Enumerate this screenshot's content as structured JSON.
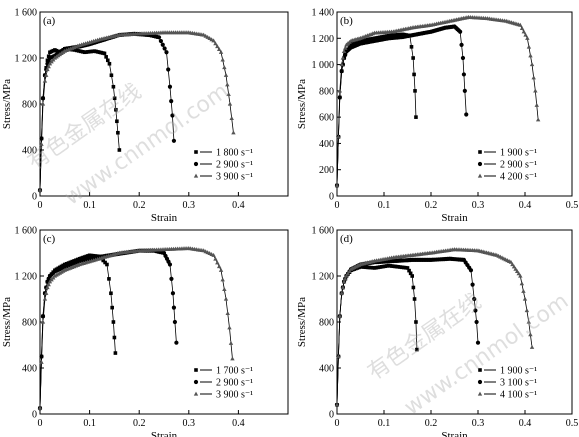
{
  "chart_data": [
    {
      "type": "line",
      "panel_label": "(a)",
      "xlabel": "Strain",
      "ylabel": "Stress/MPa",
      "xlim": [
        0,
        0.5
      ],
      "ylim": [
        0,
        1600
      ],
      "x_ticks": [
        "0",
        "0.1",
        "0.2",
        "0.3",
        "0.4"
      ],
      "y_ticks": [
        "0",
        "400",
        "800",
        "1 200",
        "1 600"
      ],
      "grid": false,
      "legend_position": "bottom-right",
      "series": [
        {
          "name": "1 800 s⁻¹",
          "marker": "square",
          "x": [
            0,
            0.003,
            0.006,
            0.01,
            0.015,
            0.02,
            0.03,
            0.04,
            0.05,
            0.07,
            0.09,
            0.11,
            0.13,
            0.14,
            0.148,
            0.153,
            0.157,
            0.16
          ],
          "y": [
            50,
            500,
            850,
            1050,
            1180,
            1250,
            1270,
            1250,
            1280,
            1270,
            1250,
            1260,
            1240,
            1150,
            950,
            750,
            550,
            400
          ]
        },
        {
          "name": "2 900 s⁻¹",
          "marker": "circle",
          "x": [
            0,
            0.003,
            0.006,
            0.01,
            0.015,
            0.02,
            0.03,
            0.05,
            0.08,
            0.1,
            0.13,
            0.16,
            0.19,
            0.22,
            0.24,
            0.255,
            0.262,
            0.267,
            0.27
          ],
          "y": [
            50,
            500,
            850,
            1050,
            1150,
            1200,
            1220,
            1280,
            1300,
            1320,
            1360,
            1400,
            1410,
            1400,
            1380,
            1250,
            950,
            700,
            480
          ]
        },
        {
          "name": "3 900 s⁻¹",
          "marker": "triangle",
          "x": [
            0,
            0.003,
            0.006,
            0.01,
            0.015,
            0.02,
            0.03,
            0.05,
            0.08,
            0.12,
            0.16,
            0.2,
            0.25,
            0.3,
            0.33,
            0.35,
            0.365,
            0.375,
            0.383,
            0.39
          ],
          "y": [
            50,
            450,
            800,
            1000,
            1100,
            1150,
            1200,
            1260,
            1310,
            1360,
            1400,
            1410,
            1420,
            1420,
            1400,
            1350,
            1250,
            1050,
            800,
            550
          ]
        }
      ]
    },
    {
      "type": "line",
      "panel_label": "(b)",
      "xlabel": "Strain",
      "ylabel": "Stress/MPa",
      "xlim": [
        0,
        0.5
      ],
      "ylim": [
        0,
        1400
      ],
      "x_ticks": [
        "0",
        "0.1",
        "0.2",
        "0.3",
        "0.4",
        "0.5"
      ],
      "y_ticks": [
        "0",
        "200",
        "400",
        "600",
        "800",
        "1 000",
        "1 200",
        "1 400"
      ],
      "grid": false,
      "legend_position": "bottom-right",
      "series": [
        {
          "name": "1 900 s⁻¹",
          "marker": "square",
          "x": [
            0,
            0.003,
            0.006,
            0.01,
            0.015,
            0.02,
            0.03,
            0.05,
            0.08,
            0.11,
            0.14,
            0.155,
            0.162,
            0.166,
            0.168
          ],
          "y": [
            80,
            450,
            750,
            950,
            1050,
            1100,
            1150,
            1180,
            1200,
            1220,
            1230,
            1220,
            1050,
            800,
            600
          ]
        },
        {
          "name": "2 900 s⁻¹",
          "marker": "circle",
          "x": [
            0,
            0.003,
            0.006,
            0.01,
            0.015,
            0.02,
            0.03,
            0.05,
            0.08,
            0.11,
            0.14,
            0.17,
            0.2,
            0.23,
            0.25,
            0.262,
            0.268,
            0.272,
            0.275
          ],
          "y": [
            80,
            450,
            750,
            950,
            1050,
            1100,
            1130,
            1160,
            1180,
            1200,
            1210,
            1230,
            1250,
            1280,
            1290,
            1250,
            1050,
            800,
            620
          ]
        },
        {
          "name": "4 200 s⁻¹",
          "marker": "triangle",
          "x": [
            0,
            0.003,
            0.006,
            0.01,
            0.015,
            0.02,
            0.03,
            0.05,
            0.08,
            0.12,
            0.16,
            0.2,
            0.24,
            0.28,
            0.32,
            0.36,
            0.39,
            0.405,
            0.415,
            0.422,
            0.428
          ],
          "y": [
            80,
            450,
            800,
            1000,
            1100,
            1150,
            1180,
            1200,
            1240,
            1250,
            1280,
            1300,
            1330,
            1360,
            1350,
            1330,
            1300,
            1200,
            1000,
            800,
            580
          ]
        }
      ]
    },
    {
      "type": "line",
      "panel_label": "(c)",
      "xlabel": "Strain",
      "ylabel": "Stress/MPa",
      "xlim": [
        0,
        0.5
      ],
      "ylim": [
        0,
        1600
      ],
      "x_ticks": [
        "0",
        "0.1",
        "0.2",
        "0.3",
        "0.4"
      ],
      "y_ticks": [
        "0",
        "400",
        "800",
        "1 200",
        "1 600"
      ],
      "grid": false,
      "legend_position": "bottom-right",
      "series": [
        {
          "name": "1 700 s⁻¹",
          "marker": "square",
          "x": [
            0,
            0.003,
            0.006,
            0.01,
            0.015,
            0.02,
            0.03,
            0.05,
            0.08,
            0.1,
            0.12,
            0.135,
            0.143,
            0.148,
            0.152
          ],
          "y": [
            50,
            500,
            850,
            1050,
            1150,
            1200,
            1250,
            1300,
            1350,
            1380,
            1370,
            1300,
            1050,
            800,
            530
          ]
        },
        {
          "name": "2 900 s⁻¹",
          "marker": "circle",
          "x": [
            0,
            0.003,
            0.006,
            0.01,
            0.015,
            0.02,
            0.03,
            0.05,
            0.08,
            0.11,
            0.14,
            0.17,
            0.2,
            0.23,
            0.25,
            0.262,
            0.268,
            0.272,
            0.275
          ],
          "y": [
            50,
            500,
            850,
            1050,
            1150,
            1200,
            1240,
            1280,
            1330,
            1360,
            1380,
            1400,
            1420,
            1420,
            1400,
            1300,
            1050,
            800,
            620
          ]
        },
        {
          "name": "3 900 s⁻¹",
          "marker": "triangle",
          "x": [
            0,
            0.003,
            0.006,
            0.01,
            0.015,
            0.02,
            0.03,
            0.05,
            0.08,
            0.12,
            0.16,
            0.2,
            0.25,
            0.3,
            0.33,
            0.35,
            0.365,
            0.375,
            0.382,
            0.388
          ],
          "y": [
            50,
            450,
            800,
            1000,
            1100,
            1150,
            1200,
            1250,
            1300,
            1350,
            1400,
            1420,
            1430,
            1440,
            1420,
            1380,
            1250,
            1000,
            750,
            480
          ]
        }
      ]
    },
    {
      "type": "line",
      "panel_label": "(d)",
      "xlabel": "Strain",
      "ylabel": "Stress/MPa",
      "xlim": [
        0,
        0.5
      ],
      "ylim": [
        0,
        1600
      ],
      "x_ticks": [
        "0",
        "0.1",
        "0.2",
        "0.3",
        "0.4",
        "0.5"
      ],
      "y_ticks": [
        "0",
        "400",
        "800",
        "1 200",
        "1 600"
      ],
      "grid": false,
      "legend_position": "bottom-right",
      "series": [
        {
          "name": "1 900 s⁻¹",
          "marker": "square",
          "x": [
            0,
            0.003,
            0.006,
            0.01,
            0.015,
            0.02,
            0.03,
            0.05,
            0.08,
            0.11,
            0.13,
            0.15,
            0.16,
            0.165,
            0.168,
            0.17
          ],
          "y": [
            80,
            500,
            850,
            1050,
            1150,
            1200,
            1250,
            1280,
            1270,
            1290,
            1280,
            1270,
            1200,
            1000,
            800,
            560
          ]
        },
        {
          "name": "3 100 s⁻¹",
          "marker": "circle",
          "x": [
            0,
            0.003,
            0.006,
            0.01,
            0.015,
            0.02,
            0.03,
            0.05,
            0.08,
            0.12,
            0.16,
            0.2,
            0.24,
            0.27,
            0.285,
            0.292,
            0.297,
            0.3
          ],
          "y": [
            80,
            500,
            850,
            1050,
            1150,
            1200,
            1260,
            1300,
            1320,
            1330,
            1340,
            1340,
            1350,
            1340,
            1250,
            1000,
            800,
            620
          ]
        },
        {
          "name": "4 100 s⁻¹",
          "marker": "triangle",
          "x": [
            0,
            0.003,
            0.006,
            0.01,
            0.015,
            0.02,
            0.03,
            0.05,
            0.08,
            0.12,
            0.16,
            0.2,
            0.25,
            0.3,
            0.34,
            0.37,
            0.39,
            0.4,
            0.408,
            0.415
          ],
          "y": [
            80,
            500,
            850,
            1050,
            1150,
            1200,
            1260,
            1300,
            1330,
            1360,
            1380,
            1400,
            1430,
            1420,
            1380,
            1320,
            1200,
            1000,
            800,
            580
          ]
        }
      ]
    }
  ],
  "watermark": [
    "有色金属在线",
    "www.cnnmol.com"
  ]
}
